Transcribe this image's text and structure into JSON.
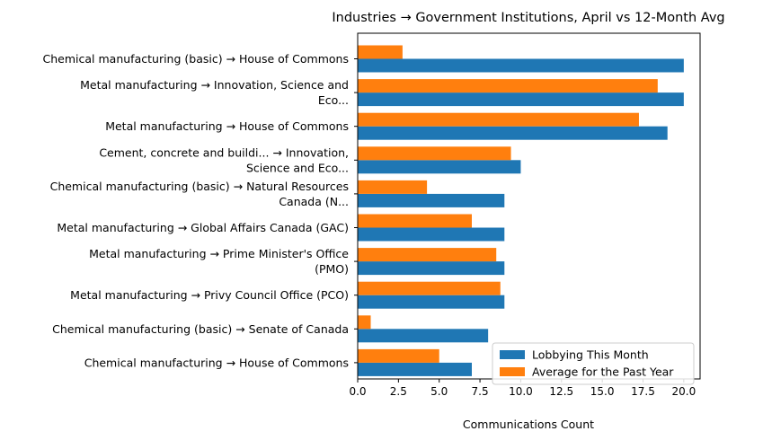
{
  "chart_data": {
    "type": "bar",
    "orientation": "horizontal",
    "title": "Industries → Government Institutions, April vs 12-Month Avg",
    "xlabel": "Communications Count",
    "ylabel": "",
    "xlim": [
      0,
      21
    ],
    "xticks": [
      "0.0",
      "2.5",
      "5.0",
      "7.5",
      "10.0",
      "12.5",
      "15.0",
      "17.5",
      "20.0"
    ],
    "grid": false,
    "legend_position": "lower-right",
    "categories": [
      [
        "Chemical manufacturing (basic) → House of Commons"
      ],
      [
        "Metal manufacturing → Innovation, Science and",
        "Eco..."
      ],
      [
        "Metal manufacturing → House of Commons"
      ],
      [
        "Cement, concrete and buildi... → Innovation,",
        "Science and Eco..."
      ],
      [
        "Chemical manufacturing (basic) → Natural Resources",
        "Canada (N..."
      ],
      [
        "Metal manufacturing → Global Affairs Canada (GAC)"
      ],
      [
        "Metal manufacturing → Prime Minister's Office",
        "(PMO)"
      ],
      [
        "Metal manufacturing → Privy Council Office (PCO)"
      ],
      [
        "Chemical manufacturing (basic) → Senate of Canada"
      ],
      [
        "Chemical manufacturing → House of Commons"
      ]
    ],
    "series": [
      {
        "name": "Lobbying This Month",
        "color": "#1f77b4",
        "values": [
          20,
          20,
          19,
          10,
          9,
          9,
          9,
          9,
          8,
          7
        ]
      },
      {
        "name": "Average for the Past Year",
        "color": "#ff7f0e",
        "values": [
          2.75,
          18.4,
          17.25,
          9.4,
          4.25,
          7.0,
          8.5,
          8.75,
          0.8,
          5.0
        ]
      }
    ]
  }
}
